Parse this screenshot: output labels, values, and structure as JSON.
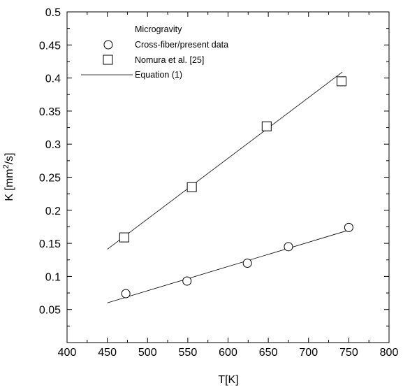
{
  "chart_data": {
    "type": "scatter",
    "title": "",
    "xlabel": "T[K]",
    "ylabel_main": "K [mm",
    "ylabel_sup": "2",
    "ylabel_tail": "/s]",
    "xlim": [
      400,
      800
    ],
    "ylim": [
      0,
      0.5
    ],
    "xticks": [
      400,
      450,
      500,
      550,
      600,
      650,
      700,
      750,
      800
    ],
    "yticks": [
      0.05,
      0.1,
      0.15,
      0.2,
      0.25,
      0.3,
      0.35,
      0.4,
      0.45,
      0.5
    ],
    "xtick_labels": [
      "400",
      "450",
      "500",
      "550",
      "600",
      "650",
      "700",
      "750",
      "800"
    ],
    "ytick_labels": [
      "0.05",
      "0.1",
      "0.15",
      "0.2",
      "0.25",
      "0.3",
      "0.35",
      "0.4",
      "0.45",
      "0.5"
    ],
    "grid": false,
    "legend": {
      "position": "top-left",
      "heading": "Microgravity",
      "entries": [
        {
          "label": "Cross-fiber/present data",
          "marker": "circle"
        },
        {
          "label": "Nomura et al. [25]",
          "marker": "square"
        },
        {
          "label": "Equation (1)",
          "marker": "line"
        }
      ]
    },
    "series": [
      {
        "name": "Cross-fiber/present data",
        "marker": "circle",
        "x": [
          473,
          549,
          624,
          675,
          750
        ],
        "y": [
          0.074,
          0.093,
          0.12,
          0.145,
          0.174
        ]
      },
      {
        "name": "Nomura et al. [25]",
        "marker": "square",
        "x": [
          471,
          555,
          648,
          741
        ],
        "y": [
          0.159,
          0.235,
          0.327,
          0.395
        ]
      }
    ],
    "fit_lines": [
      {
        "name": "Equation (1)",
        "x": [
          450,
          750
        ],
        "y": [
          0.06,
          0.17
        ]
      },
      {
        "name": "Equation (1)",
        "x": [
          450,
          742
        ],
        "y": [
          0.141,
          0.409
        ]
      }
    ]
  }
}
